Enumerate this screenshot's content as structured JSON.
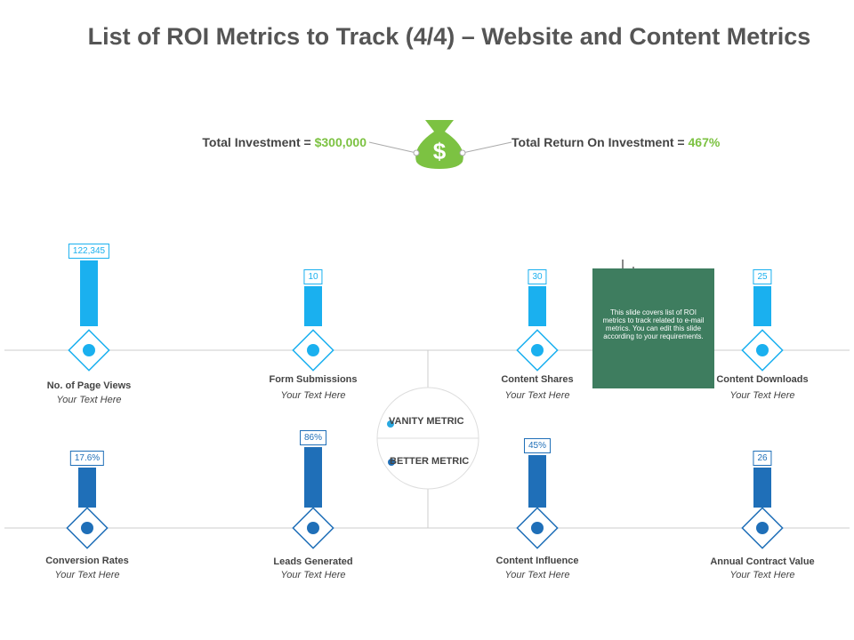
{
  "header": {
    "title": "List of ROI Metrics to Track (4/4) – Website and Content Metrics"
  },
  "summary": {
    "investment_label": "Total Investment = ",
    "investment_value": "$300,000",
    "return_label": "Total Return On Investment = ",
    "return_value": "467%"
  },
  "metrics": [
    {
      "label": "No. of Page Views",
      "value": "122,345",
      "subtext": "Your Text Here"
    },
    {
      "label": "Form Submissions",
      "value": "10",
      "subtext": "Your Text Here"
    },
    {
      "label": "Content Shares",
      "value": "30",
      "subtext": "Your Text Here"
    },
    {
      "label": "Content Downloads",
      "value": "25",
      "subtext": "Your Text Here"
    },
    {
      "label": "Conversion Rates",
      "value": "17.6%",
      "subtext": "Your Text Here"
    },
    {
      "label": "Leads Generated",
      "value": "86%",
      "subtext": "Your Text Here"
    },
    {
      "label": "Content Influence",
      "value": "45%",
      "subtext": "Your Text Here"
    },
    {
      "label": "Annual Contract Value",
      "value": "26",
      "subtext": "Your Text Here"
    }
  ],
  "legend": {
    "vanity": "VANITY METRIC",
    "better": "BETTER METRIC"
  },
  "note": {
    "text": "This slide covers list of ROI metrics to track related to e-mail metrics. You can edit this slide according to your requirements."
  }
}
